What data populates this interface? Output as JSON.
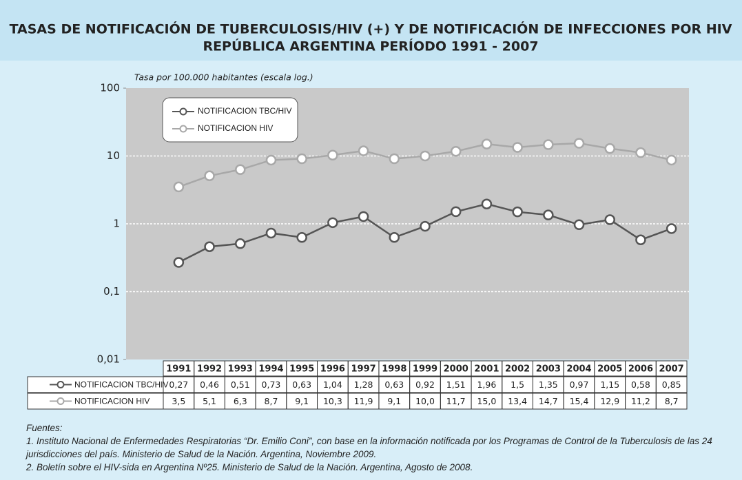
{
  "chart_data": {
    "type": "line",
    "title": "TASAS DE NOTIFICACIÓN DE TUBERCULOSIS/HIV (+) Y DE NOTIFICACIÓN DE INFECCIONES POR HIV",
    "subtitle": "REPÚBLICA ARGENTINA PERÍODO 1991 - 2007",
    "y_label": "Tasa por 100.000 habitantes (escala log.)",
    "log_scale": true,
    "grid": true,
    "legend_position": "upper left",
    "ylim": [
      0.01,
      100
    ],
    "yticks": [
      {
        "value": 0.01,
        "label": "0,01"
      },
      {
        "value": 0.1,
        "label": "0,1"
      },
      1,
      10,
      100
    ],
    "categories": [
      "1991",
      "1992",
      "1993",
      "1994",
      "1995",
      "1996",
      "1997",
      "1998",
      "1999",
      "2000",
      "2001",
      "2002",
      "2003",
      "2004",
      "2005",
      "2006",
      "2007"
    ],
    "series": [
      {
        "name": "NOTIFICACION TBC/HIV",
        "color": "#555555",
        "values": [
          0.27,
          0.46,
          0.51,
          0.73,
          0.63,
          1.04,
          1.28,
          0.63,
          0.92,
          1.51,
          1.96,
          1.5,
          1.35,
          0.97,
          1.15,
          0.58,
          0.85
        ],
        "value_labels": [
          "0,27",
          "0,46",
          "0,51",
          "0,73",
          "0,63",
          "1,04",
          "1,28",
          "0,63",
          "0,92",
          "1,51",
          "1,96",
          "1,5",
          "1,35",
          "0,97",
          "1,15",
          "0,58",
          "0,85"
        ]
      },
      {
        "name": "NOTIFICACION HIV",
        "color": "#a8a8a8",
        "values": [
          3.5,
          5.1,
          6.3,
          8.7,
          9.1,
          10.3,
          11.9,
          9.1,
          10.0,
          11.7,
          15.0,
          13.4,
          14.7,
          15.4,
          12.9,
          11.2,
          8.7
        ],
        "value_labels": [
          "3,5",
          "5,1",
          "6,3",
          "8,7",
          "9,1",
          "10,3",
          "11,9",
          "9,1",
          "10,0",
          "11,7",
          "15,0",
          "13,4",
          "14,7",
          "15,4",
          "12,9",
          "11,2",
          "8,7"
        ]
      }
    ]
  },
  "sources": {
    "heading": "Fuentes:",
    "lines": [
      "1.  Instituto Nacional de Enfermedades Respiratorias “Dr. Emilio Coni”, con base en la información notificada por los Programas de Control de la Tuberculosis de las 24 jurisdicciones del país. Ministerio de Salud de la Nación. Argentina, Noviembre 2009.",
      "2.  Boletín sobre el HIV-sida en Argentina Nº25.  Ministerio de Salud de la Nación. Argentina,  Agosto de 2008."
    ]
  }
}
